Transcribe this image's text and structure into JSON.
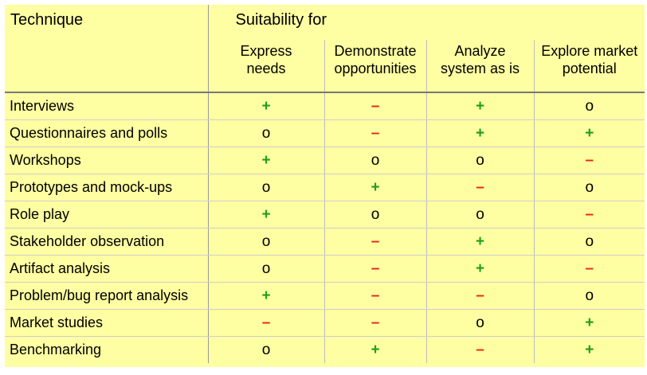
{
  "table": {
    "technique_header": "Technique",
    "suitability_header": "Suitability for",
    "columns": [
      {
        "line1": "Express",
        "line2": "needs"
      },
      {
        "line1": "Demonstrate",
        "line2": "opportunities"
      },
      {
        "line1": "Analyze",
        "line2": "system as is"
      },
      {
        "line1": "Explore market",
        "line2": "potential"
      }
    ],
    "rows": [
      {
        "technique": "Interviews",
        "values": [
          "+",
          "–",
          "+",
          "o"
        ]
      },
      {
        "technique": "Questionnaires and polls",
        "values": [
          "o",
          "–",
          "+",
          "+"
        ]
      },
      {
        "technique": "Workshops",
        "values": [
          "+",
          "o",
          "o",
          "–"
        ]
      },
      {
        "technique": "Prototypes and mock-ups",
        "values": [
          "o",
          "+",
          "–",
          "o"
        ]
      },
      {
        "technique": "Role play",
        "values": [
          "+",
          "o",
          "o",
          "–"
        ]
      },
      {
        "technique": "Stakeholder observation",
        "values": [
          "o",
          "–",
          "+",
          "o"
        ]
      },
      {
        "technique": "Artifact analysis",
        "values": [
          "o",
          "–",
          "+",
          "–"
        ]
      },
      {
        "technique": "Problem/bug report analysis",
        "values": [
          "+",
          "–",
          "–",
          "o"
        ]
      },
      {
        "technique": "Market studies",
        "values": [
          "–",
          "–",
          "o",
          "+"
        ]
      },
      {
        "technique": "Benchmarking",
        "values": [
          "o",
          "+",
          "–",
          "+"
        ]
      }
    ]
  },
  "colors": {
    "background": "#fefea2",
    "plus": "#1e9e1e",
    "minus": "#e8271a",
    "neutral": "#000000"
  }
}
